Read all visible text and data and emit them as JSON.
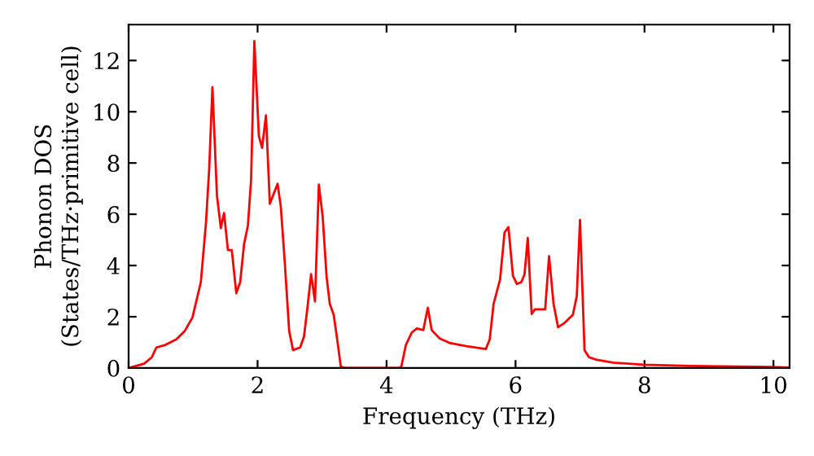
{
  "chart_data": {
    "type": "line",
    "xlabel": "Frequency (THz)",
    "ylabel": "Phonon DOS\n(States/THz·primitive cell)",
    "xlim": [
      0,
      10.25
    ],
    "ylim": [
      0,
      13.4
    ],
    "xticks": [
      0,
      2,
      4,
      6,
      8,
      10
    ],
    "yticks": [
      0,
      2,
      4,
      6,
      8,
      10,
      12
    ],
    "grid": false,
    "legend": false,
    "marker": "none",
    "line_style": "solid",
    "series": [
      {
        "color": "#ff0000",
        "x": [
          0,
          0.24,
          0.36,
          0.43,
          0.57,
          0.74,
          0.87,
          0.99,
          1.12,
          1.2,
          1.25,
          1.3,
          1.37,
          1.43,
          1.48,
          1.54,
          1.6,
          1.67,
          1.73,
          1.79,
          1.85,
          1.9,
          1.95,
          2.02,
          2.07,
          2.13,
          2.19,
          2.31,
          2.36,
          2.42,
          2.49,
          2.55,
          2.66,
          2.72,
          2.78,
          2.83,
          2.89,
          2.95,
          3.01,
          3.07,
          3.12,
          3.18,
          3.24,
          3.29,
          3.35,
          4.2,
          4.23,
          4.3,
          4.39,
          4.47,
          4.57,
          4.64,
          4.7,
          4.82,
          4.99,
          5.24,
          5.54,
          5.6,
          5.66,
          5.76,
          5.83,
          5.89,
          5.96,
          6.02,
          6.09,
          6.14,
          6.19,
          6.25,
          6.3,
          6.46,
          6.52,
          6.59,
          6.66,
          6.76,
          6.89,
          6.95,
          7.0,
          7.07,
          7.14,
          7.26,
          7.52,
          7.98,
          8.7,
          9.96,
          10.25
        ],
        "values": [
          0,
          0.17,
          0.42,
          0.8,
          0.9,
          1.12,
          1.44,
          1.97,
          3.35,
          5.67,
          7.8,
          10.96,
          6.73,
          5.46,
          6.05,
          4.6,
          4.6,
          2.92,
          3.35,
          4.83,
          5.56,
          7.37,
          12.76,
          9.06,
          8.59,
          9.86,
          6.41,
          7.19,
          6.3,
          4.19,
          1.44,
          0.7,
          0.8,
          1.23,
          2.5,
          3.66,
          2.6,
          7.16,
          5.89,
          3.56,
          2.5,
          2.08,
          1.02,
          0.06,
          0,
          0,
          0.06,
          0.9,
          1.38,
          1.54,
          1.48,
          2.35,
          1.48,
          1.16,
          0.97,
          0.85,
          0.74,
          1.12,
          2.5,
          3.45,
          5.29,
          5.5,
          3.6,
          3.28,
          3.35,
          3.66,
          5.08,
          2.11,
          2.29,
          2.29,
          4.36,
          2.5,
          1.59,
          1.76,
          2.08,
          2.81,
          5.78,
          0.7,
          0.42,
          0.32,
          0.21,
          0.13,
          0.08,
          0.04,
          0.02
        ]
      }
    ]
  }
}
